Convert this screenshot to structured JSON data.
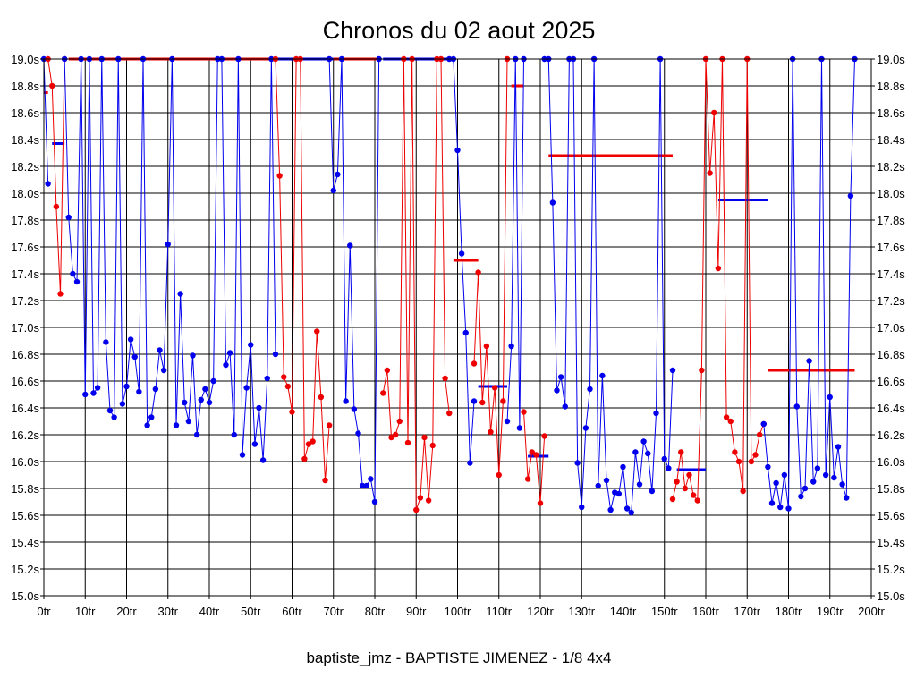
{
  "chart_data": {
    "type": "line",
    "title": "Chronos du 02 aout 2025",
    "caption": "baptiste_jmz - BAPTISTE JIMENEZ - 1/8 4x4",
    "ylim": [
      15.0,
      19.0
    ],
    "xlim": [
      0,
      200
    ],
    "y_ticks": [
      "15.0s",
      "15.2s",
      "15.4s",
      "15.6s",
      "15.8s",
      "16.0s",
      "16.2s",
      "16.4s",
      "16.6s",
      "16.8s",
      "17.0s",
      "17.2s",
      "17.4s",
      "17.6s",
      "17.8s",
      "18.0s",
      "18.2s",
      "18.4s",
      "18.6s",
      "18.8s",
      "19.0s"
    ],
    "x_ticks": [
      "0tr",
      "10tr",
      "20tr",
      "30tr",
      "40tr",
      "50tr",
      "60tr",
      "70tr",
      "80tr",
      "90tr",
      "100tr",
      "110tr",
      "120tr",
      "130tr",
      "140tr",
      "150tr",
      "160tr",
      "170tr",
      "180tr",
      "190tr",
      "200tr"
    ],
    "grid": true,
    "colors": {
      "blue": "#0000ee",
      "red": "#ee0000",
      "grid": "#000000"
    },
    "series": [
      {
        "color": "blue",
        "x": [
          0,
          1
        ],
        "y": [
          19.0,
          18.07
        ]
      },
      {
        "color": "red",
        "x": [
          1,
          2,
          3,
          4,
          5
        ],
        "y": [
          19.0,
          18.8,
          17.9,
          17.25,
          19.0
        ]
      },
      {
        "color": "blue",
        "x": [
          5,
          6,
          7,
          8,
          9,
          10,
          11,
          12,
          13,
          14,
          15,
          16,
          17,
          18,
          19,
          20,
          21,
          22,
          23,
          24,
          25,
          26,
          27,
          28,
          29,
          30,
          31,
          32,
          33,
          34,
          35,
          36,
          37,
          38,
          39,
          40,
          41,
          42,
          43,
          44,
          45,
          46,
          47,
          48,
          49,
          50,
          51,
          52,
          53,
          54,
          55,
          56
        ],
        "y": [
          19.0,
          17.82,
          17.4,
          17.34,
          19.0,
          16.5,
          19.0,
          16.51,
          16.55,
          19.0,
          16.89,
          16.38,
          16.33,
          19.0,
          16.43,
          16.56,
          16.91,
          16.78,
          16.52,
          19.0,
          16.27,
          16.33,
          16.54,
          16.83,
          16.68,
          17.62,
          19.0,
          16.27,
          17.25,
          16.44,
          16.3,
          16.79,
          16.2,
          16.46,
          16.54,
          16.44,
          16.6,
          19.0,
          19.0,
          16.72,
          16.81,
          16.2,
          19.0,
          16.05,
          16.55,
          16.87,
          16.13,
          16.4,
          16.01,
          16.62,
          19.0,
          16.8
        ]
      },
      {
        "color": "red",
        "x": [
          56,
          57,
          58,
          59,
          60,
          61,
          62,
          63,
          64,
          65,
          66,
          67,
          68,
          69
        ],
        "y": [
          19.0,
          18.13,
          16.63,
          16.56,
          16.37,
          19.0,
          19.0,
          16.02,
          16.13,
          16.15,
          16.97,
          16.48,
          15.86,
          16.27
        ]
      },
      {
        "color": "blue",
        "x": [
          69,
          70,
          71,
          72,
          73,
          74,
          75,
          76,
          77,
          78,
          79,
          80,
          81
        ],
        "y": [
          19.0,
          18.02,
          18.14,
          19.0,
          16.45,
          17.61,
          16.39,
          16.21,
          15.82,
          15.82,
          15.87,
          15.7,
          19.0
        ]
      },
      {
        "color": "red",
        "x": [
          82,
          83,
          84,
          85,
          86,
          87,
          88,
          89,
          90,
          91,
          92,
          93,
          94,
          95,
          96,
          97,
          98
        ],
        "y": [
          16.51,
          16.68,
          16.18,
          16.2,
          16.3,
          19.0,
          16.14,
          19.0,
          15.64,
          15.73,
          16.18,
          15.71,
          16.12,
          19.0,
          19.0,
          16.62,
          16.36
        ]
      },
      {
        "color": "blue",
        "x": [
          98,
          99,
          100,
          101,
          102,
          103,
          104
        ],
        "y": [
          19.0,
          19.0,
          18.32,
          17.55,
          16.96,
          15.99,
          16.45
        ]
      },
      {
        "color": "red",
        "x": [
          104,
          105,
          106,
          107,
          108,
          109,
          110,
          111,
          112
        ],
        "y": [
          16.73,
          17.41,
          16.44,
          16.86,
          16.22,
          16.55,
          15.9,
          16.45,
          19.0
        ]
      },
      {
        "color": "blue",
        "x": [
          112,
          113,
          114,
          115,
          116
        ],
        "y": [
          16.3,
          16.86,
          19.0,
          16.25,
          19.0
        ]
      },
      {
        "color": "red",
        "x": [
          116,
          117,
          118,
          119,
          120,
          121
        ],
        "y": [
          16.37,
          15.87,
          16.07,
          16.05,
          15.69,
          16.19
        ]
      },
      {
        "color": "blue",
        "x": [
          121,
          122,
          123,
          124,
          125,
          126,
          127,
          128,
          129,
          130,
          131,
          132,
          133,
          134,
          135,
          136,
          137,
          138,
          139,
          140,
          141,
          142,
          143,
          144,
          145,
          146,
          147,
          148,
          149,
          150,
          151,
          152
        ],
        "y": [
          19.0,
          19.0,
          17.93,
          16.53,
          16.63,
          16.41,
          19.0,
          19.0,
          15.99,
          15.66,
          16.25,
          16.54,
          19.0,
          15.82,
          16.64,
          15.86,
          15.64,
          15.77,
          15.76,
          15.96,
          15.65,
          15.62,
          16.07,
          15.83,
          16.15,
          16.06,
          15.78,
          16.36,
          19.0,
          16.02,
          15.95,
          16.68
        ]
      },
      {
        "color": "red",
        "x": [
          152,
          153,
          154,
          155,
          156,
          157,
          158,
          159,
          160,
          161,
          162,
          163,
          164,
          165,
          166,
          167,
          168,
          169,
          170,
          171,
          172,
          173,
          174
        ],
        "y": [
          15.72,
          15.85,
          16.07,
          15.8,
          15.9,
          15.75,
          15.71,
          16.68,
          19.0,
          18.15,
          18.6,
          17.44,
          19.0,
          16.33,
          16.3,
          16.07,
          16.0,
          15.78,
          19.0,
          16.0,
          16.05,
          16.2,
          16.28
        ]
      },
      {
        "color": "blue",
        "x": [
          174,
          175,
          176,
          177,
          178,
          179,
          180,
          181,
          182,
          183,
          184,
          185,
          186,
          187,
          188,
          189,
          190,
          191,
          192,
          193,
          194,
          195,
          196
        ],
        "y": [
          16.28,
          15.96,
          15.69,
          15.84,
          15.66,
          15.9,
          15.65,
          19.0,
          16.41,
          15.74,
          15.8,
          16.75,
          15.85,
          15.95,
          19.0,
          15.9,
          16.48,
          15.88,
          16.11,
          15.83,
          15.73,
          17.98,
          19.0
        ]
      }
    ],
    "reference_lines": [
      {
        "color": "red",
        "x": [
          0,
          1
        ],
        "y": 18.75
      },
      {
        "color": "blue",
        "x": [
          2,
          5
        ],
        "y": 18.37
      },
      {
        "color": "red",
        "x": [
          6,
          56
        ],
        "y": 19.0
      },
      {
        "color": "blue",
        "x": [
          56,
          70
        ],
        "y": 19.0
      },
      {
        "color": "red",
        "x": [
          70,
          81
        ],
        "y": 19.0
      },
      {
        "color": "blue",
        "x": [
          82,
          98
        ],
        "y": 19.0
      },
      {
        "color": "red",
        "x": [
          99,
          105
        ],
        "y": 17.5
      },
      {
        "color": "blue",
        "x": [
          105,
          112
        ],
        "y": 16.56
      },
      {
        "color": "red",
        "x": [
          113,
          116
        ],
        "y": 18.8
      },
      {
        "color": "blue",
        "x": [
          117,
          122
        ],
        "y": 16.04
      },
      {
        "color": "red",
        "x": [
          122,
          152
        ],
        "y": 18.28
      },
      {
        "color": "blue",
        "x": [
          153,
          160
        ],
        "y": 15.94
      },
      {
        "color": "blue",
        "x": [
          163,
          175
        ],
        "y": 17.95
      },
      {
        "color": "red",
        "x": [
          175,
          196
        ],
        "y": 16.68
      }
    ]
  }
}
